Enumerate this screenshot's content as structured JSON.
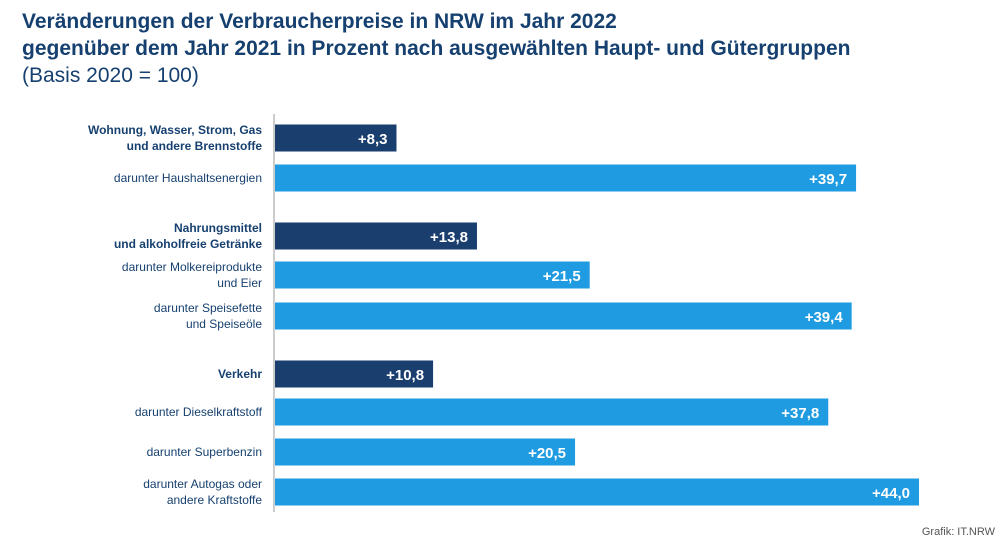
{
  "title_lines": [
    "Veränderungen der Verbraucherpreise in NRW im Jahr 2022",
    "gegenüber dem Jahr 2021 in Prozent nach ausgewählten Haupt- und Gütergruppen"
  ],
  "subtitle": "(Basis 2020 = 100)",
  "source": "Grafik: IT.NRW",
  "colors": {
    "main": "#1a3e6e",
    "sub": "#1e9be1",
    "label_text": "#16406f",
    "bar_text": "#ffffff",
    "axis": "#9a9a9a"
  },
  "chart_data": {
    "type": "bar",
    "orientation": "horizontal",
    "xlim": [
      0,
      44
    ],
    "grid": false,
    "legend": "none",
    "categories": [
      {
        "label": [
          "Wohnung, Wasser, Strom, Gas",
          "und andere Brennstoffe"
        ],
        "value": 8.3,
        "display": "+8,3",
        "kind": "main"
      },
      {
        "label": [
          "darunter Haushaltsenergien"
        ],
        "value": 39.7,
        "display": "+39,7",
        "kind": "sub"
      },
      {
        "label": [
          "Nahrungsmittel",
          "und alkoholfreie Getränke"
        ],
        "value": 13.8,
        "display": "+13,8",
        "kind": "main"
      },
      {
        "label": [
          "darunter Molkereiprodukte",
          "und Eier"
        ],
        "value": 21.5,
        "display": "+21,5",
        "kind": "sub"
      },
      {
        "label": [
          "darunter Speisefette",
          "und Speiseöle"
        ],
        "value": 39.4,
        "display": "+39,4",
        "kind": "sub"
      },
      {
        "label": [
          "Verkehr"
        ],
        "value": 10.8,
        "display": "+10,8",
        "kind": "main"
      },
      {
        "label": [
          "darunter Dieselkraftstoff"
        ],
        "value": 37.8,
        "display": "+37,8",
        "kind": "sub"
      },
      {
        "label": [
          "darunter Superbenzin"
        ],
        "value": 20.5,
        "display": "+20,5",
        "kind": "sub"
      },
      {
        "label": [
          "darunter Autogas oder",
          "andere Kraftstoffe"
        ],
        "value": 44.0,
        "display": "+44,0",
        "kind": "sub"
      }
    ]
  }
}
